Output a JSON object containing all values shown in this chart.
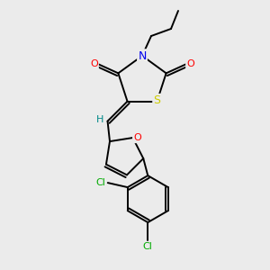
{
  "background_color": "#ebebeb",
  "atom_colors": {
    "N": "#0000ee",
    "O": "#ff0000",
    "S": "#cccc00",
    "Cl": "#00aa00",
    "C": "#000000",
    "H": "#008888"
  },
  "figsize": [
    3.0,
    3.0
  ],
  "dpi": 100,
  "lw": 1.4
}
